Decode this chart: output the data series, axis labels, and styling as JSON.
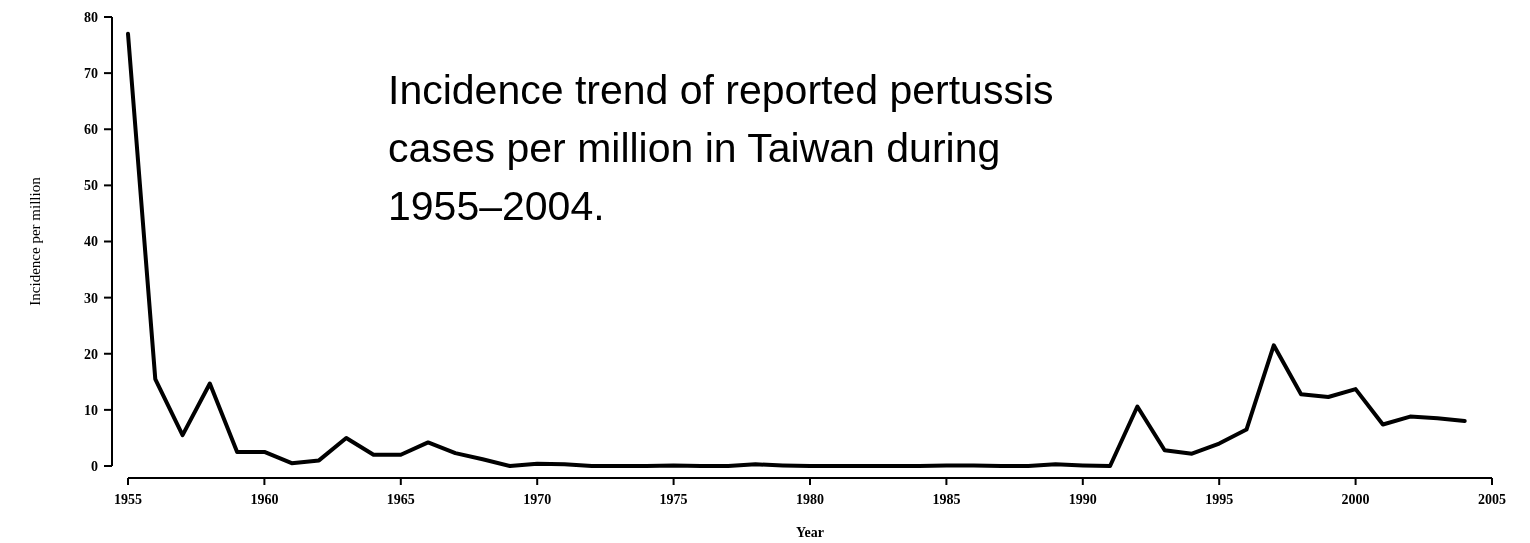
{
  "chart_data": {
    "type": "line",
    "title": "Incidence trend of reported pertussis cases per million in Taiwan during 1955–2004.",
    "xlabel": "Year",
    "ylabel": "Incidence per million",
    "x": [
      1955,
      1956,
      1957,
      1958,
      1959,
      1960,
      1961,
      1962,
      1963,
      1964,
      1965,
      1966,
      1967,
      1968,
      1969,
      1970,
      1971,
      1972,
      1973,
      1974,
      1975,
      1976,
      1977,
      1978,
      1979,
      1980,
      1981,
      1982,
      1983,
      1984,
      1985,
      1986,
      1987,
      1988,
      1989,
      1990,
      1991,
      1992,
      1993,
      1994,
      1995,
      1996,
      1997,
      1998,
      1999,
      2000,
      2001,
      2002,
      2003,
      2004
    ],
    "series": [
      {
        "color": "#000000",
        "values": [
          77,
          15.5,
          5.5,
          14.7,
          2.5,
          2.5,
          0.5,
          1,
          5,
          2,
          2,
          4.2,
          2.3,
          1.2,
          0,
          0.4,
          0.3,
          0,
          0,
          0,
          0.1,
          0,
          0,
          0.3,
          0.1,
          0,
          0,
          0,
          0,
          0,
          0.1,
          0.1,
          0,
          0,
          0.3,
          0.1,
          0,
          10.6,
          2.8,
          2.2,
          4,
          6.5,
          21.5,
          12.8,
          12.3,
          13.7,
          7.4,
          8.8,
          8.5,
          8
        ]
      }
    ],
    "xlim": [
      1955,
      2005
    ],
    "xticks": [
      1955,
      1960,
      1965,
      1970,
      1975,
      1980,
      1985,
      1990,
      1995,
      2000,
      2005
    ],
    "ylim": [
      0,
      80
    ],
    "yticks": [
      0,
      10,
      20,
      30,
      40,
      50,
      60,
      70,
      80
    ],
    "grid": false,
    "marker": "none",
    "line_style": "solid"
  }
}
